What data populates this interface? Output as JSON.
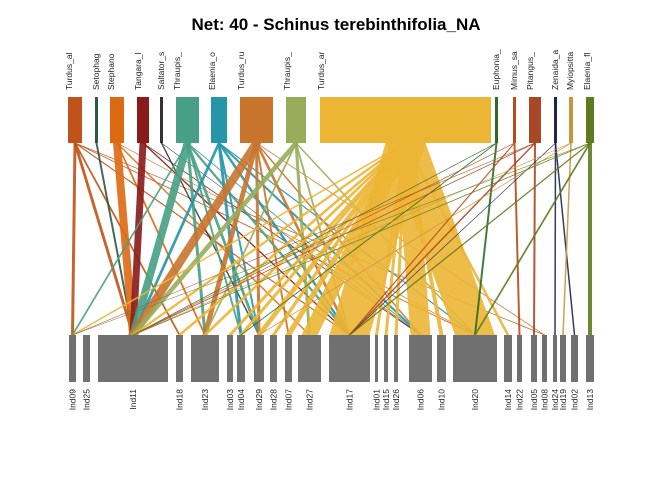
{
  "chart_data": {
    "type": "bipartite",
    "title": "Net: 40 - Schinus terebinthifolia_NA",
    "higher": [
      {
        "name": "Turdus_al",
        "color": "#C0531A"
      },
      {
        "name": "Setophag",
        "color": "#2E5948"
      },
      {
        "name": "Stephano",
        "color": "#DB6A12"
      },
      {
        "name": "Tangara_l",
        "color": "#8B1A1A"
      },
      {
        "name": "Saltator_s",
        "color": "#333333"
      },
      {
        "name": "Thraupis_",
        "color": "#47A085"
      },
      {
        "name": "Elaenia_o",
        "color": "#2596A8"
      },
      {
        "name": "Turdus_ru",
        "color": "#C8742D"
      },
      {
        "name": "Thraupis_",
        "color": "#97AD5C"
      },
      {
        "name": "Turdus_ar",
        "color": "#ECB534"
      },
      {
        "name": "Euphonia_",
        "color": "#2F6B2A"
      },
      {
        "name": "Mimus_sa",
        "color": "#B84A1C"
      },
      {
        "name": "Pitangus_",
        "color": "#A84825"
      },
      {
        "name": "Zenaida_a",
        "color": "#1F2550"
      },
      {
        "name": "Myiopsitta",
        "color": "#C7963C"
      },
      {
        "name": "Elaenia_fl",
        "color": "#5E7B1F"
      }
    ],
    "lower": [
      "Ind09",
      "Ind25",
      "Ind11",
      "Ind18",
      "Ind23",
      "Ind03",
      "Ind04",
      "Ind29",
      "Ind28",
      "Ind07",
      "Ind27",
      "Ind17",
      "Ind01",
      "Ind15",
      "Ind26",
      "Ind06",
      "Ind10",
      "Ind20",
      "Ind14",
      "Ind22",
      "Ind05",
      "Ind08",
      "Ind24",
      "Ind19",
      "Ind02",
      "Ind13"
    ]
  }
}
